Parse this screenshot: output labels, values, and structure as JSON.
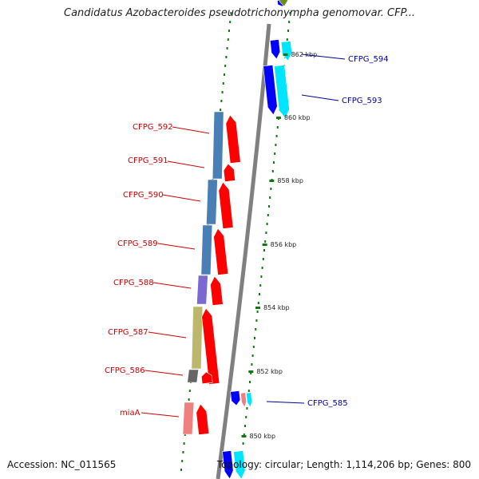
{
  "header": {
    "title": "Candidatus Azobacteroides pseudotrichonympha genomovar. CFP..."
  },
  "footer": {
    "accession": "Accession: NC_011565",
    "topology": "Topology: circular; Length: 1,114,206 bp; Genes: 800"
  },
  "scale": {
    "ticks": [
      "862 kbp",
      "860 kbp",
      "858 kbp",
      "856 kbp",
      "854 kbp",
      "852 kbp",
      "850 kbp"
    ]
  },
  "labels": {
    "forward_color": "#cc0000",
    "reverse_color": "#000099",
    "genes": [
      {
        "name": "CFPG_594",
        "strand": "reverse"
      },
      {
        "name": "CFPG_593",
        "strand": "reverse"
      },
      {
        "name": "CFPG_592",
        "strand": "forward"
      },
      {
        "name": "CFPG_591",
        "strand": "forward"
      },
      {
        "name": "CFPG_590",
        "strand": "forward"
      },
      {
        "name": "CFPG_589",
        "strand": "forward"
      },
      {
        "name": "CFPG_588",
        "strand": "forward"
      },
      {
        "name": "CFPG_587",
        "strand": "forward"
      },
      {
        "name": "CFPG_586",
        "strand": "forward"
      },
      {
        "name": "CFPG_585",
        "strand": "reverse"
      },
      {
        "name": "miaA",
        "strand": "forward"
      }
    ]
  },
  "colors": {
    "backbone": "#808080",
    "forward_gene": "#ff0000",
    "reverse_gene_blue": "#0000ff",
    "reverse_gene_cyan": "#00e5ff",
    "cog_steelblue": "#4a7fb5",
    "cog_purple": "#7b68d0",
    "cog_khaki": "#bdb76b",
    "cog_gray": "#666666",
    "cog_pink": "#f08080",
    "tick_green": "#117711"
  }
}
